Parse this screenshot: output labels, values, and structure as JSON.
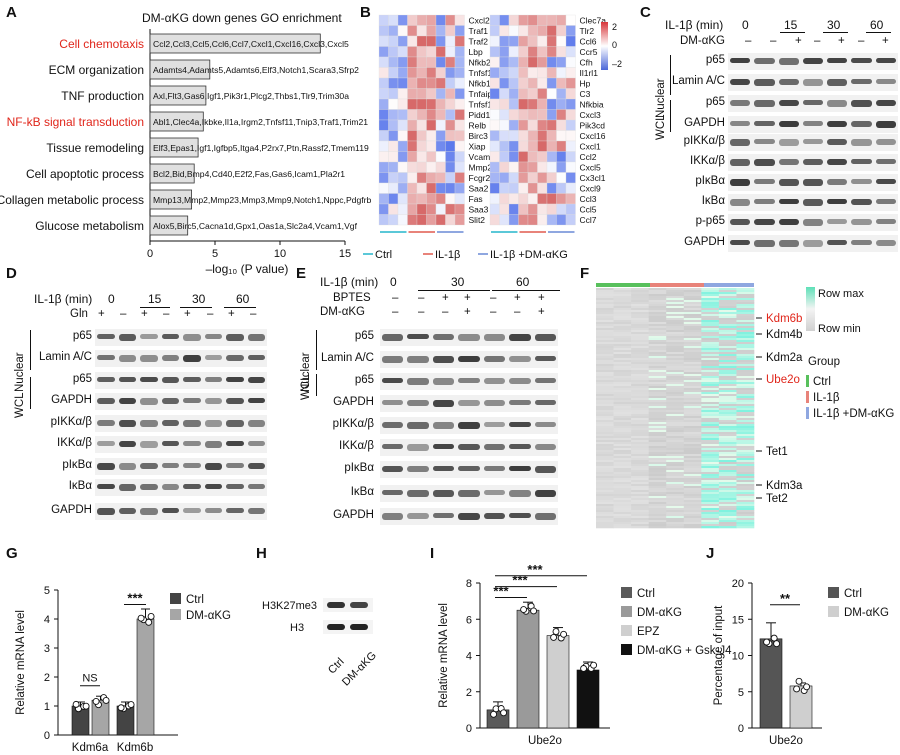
{
  "panels": {
    "A": "A",
    "B": "B",
    "C": "C",
    "D": "D",
    "E": "E",
    "F": "F",
    "G": "G",
    "H": "H",
    "I": "I",
    "J": "J"
  },
  "panelA": {
    "title": "DM-αKG down genes GO enrichment",
    "xlabel": "–log₁₀ (P value)",
    "ticks": [
      "0",
      "5",
      "10",
      "15"
    ],
    "terms": [
      {
        "term": "Cell chemotaxis",
        "genes": "Ccl2,Ccl3,Ccl5,Ccl6,Ccl7,Cxcl1,Cxcl16,Cxcl3,Cxcl5",
        "value": 13.1,
        "highlight": true
      },
      {
        "term": "ECM organization",
        "genes": "Adamts4,Adamts5,Adamts6,Elf3,Notch1,Scara3,Sfrp2",
        "value": 4.6,
        "highlight": false
      },
      {
        "term": "TNF production",
        "genes": "Axl,Flt3,Gas6,Igf1,Pik3r1,Plcg2,Thbs1,Tlr9,Trim30a",
        "value": 4.3,
        "highlight": false
      },
      {
        "term": "NF-kB signal transduction",
        "genes": "Abl1,Clec4a,Ikbke,Il1a,Irgm2,Tnfsf11,Tnip3,Traf1,Trim21",
        "value": 4.1,
        "highlight": true
      },
      {
        "term": "Tissue remodeling",
        "genes": "Elf3,Epas1,Igf1,Igfbp5,Itga4,P2rx7,Ptn,Rassf2,Tmem119",
        "value": 3.7,
        "highlight": false
      },
      {
        "term": "Cell apoptotic process",
        "genes": "Bcl2,Bid,Bmp4,Cd40,E2f2,Fas,Gas6,Icam1,Pla2r1",
        "value": 3.4,
        "highlight": false
      },
      {
        "term": "Collagen metabolic process",
        "genes": "Mmp13,Mmp2,Mmp23,Mmp3,Mmp9,Notch1,Nppc,Pdgfrb",
        "value": 3.2,
        "highlight": false
      },
      {
        "term": "Glucose metabolism",
        "genes": "Alox5,Birc5,Cacna1d,Gpx1,Oas1a,Slc2a4,Vcam1,Vgf",
        "value": 2.9,
        "highlight": false
      }
    ],
    "highlight_color": "#e0261b",
    "bar_color": "#e0e0e0"
  },
  "panelB": {
    "genes_left": [
      "Cxcl2",
      "Traf1",
      "Traf2",
      "Lbp",
      "Nfkb2",
      "Tnfsf14",
      "Nfkb1",
      "Tnfaip3",
      "Tnfsf11",
      "Pidd1",
      "Relb",
      "Birc3",
      "Xiap",
      "Vcam1",
      "Mmp2",
      "Fcgr2b",
      "Saa2",
      "Fas",
      "Saa3",
      "Slit2"
    ],
    "genes_right": [
      "Clec7a",
      "Tlr2",
      "Ccl6",
      "Ccr5",
      "Cfh",
      "Il1rl1",
      "Hp",
      "C3",
      "Nfkbia",
      "Cxcl3",
      "Pik3cd",
      "Cxcl16",
      "Cxcl1",
      "Ccl2",
      "Cxcl5",
      "Cx3cl1",
      "Cxcl9",
      "Ccl3",
      "Ccl5",
      "Ccl7"
    ],
    "scale_labels": [
      "2",
      "0",
      "–2"
    ],
    "legend": [
      {
        "label": "Ctrl",
        "color": "#5bc8d8"
      },
      {
        "label": "IL-1β",
        "color": "#e8837a"
      },
      {
        "label": "IL-1β +DM-αKG",
        "color": "#8fa7e0"
      }
    ]
  },
  "panelC": {
    "header_il": "IL-1β (min)",
    "header_dm": "DM-αKG",
    "timepoints": [
      "0",
      "15",
      "30",
      "60"
    ],
    "dm_signs": [
      "–",
      "–",
      "+",
      "–",
      "+",
      "–",
      "+"
    ],
    "group_nuclear": "Nuclear",
    "group_wcl": "WCL",
    "bands": [
      "p65",
      "Lamin A/C",
      "p65",
      "GAPDH",
      "pIKKα/β",
      "IKKα/β",
      "pIκBα",
      "IκBα",
      "p-p65",
      "GAPDH"
    ]
  },
  "panelD": {
    "header_il": "IL-1β (min)",
    "header_gln": "Gln",
    "timepoints": [
      "0",
      "15",
      "30",
      "60"
    ],
    "gln_signs": [
      "+",
      "–",
      "+",
      "–",
      "+",
      "–",
      "+",
      "–"
    ],
    "group_nuclear": "Nuclear",
    "group_wcl": "WCL",
    "bands": [
      "p65",
      "Lamin A/C",
      "p65",
      "GAPDH",
      "pIKKα/β",
      "IKKα/β",
      "pIκBα",
      "IκBα",
      "GAPDH"
    ]
  },
  "panelE": {
    "header_il": "IL-1β (min)",
    "header_bptes": "BPTES",
    "header_dm": "DM-αKG",
    "timepoints": [
      "0",
      "30",
      "60"
    ],
    "bptes_signs": [
      "–",
      "–",
      "+",
      "+",
      "–",
      "+",
      "+"
    ],
    "dm_signs": [
      "–",
      "–",
      "–",
      "+",
      "–",
      "–",
      "+"
    ],
    "group_nuclear": "Nuclear",
    "group_wcl": "WCL",
    "bands": [
      "p65",
      "Lamin A/C",
      "p65",
      "GAPDH",
      "pIKKα/β",
      "IKKα/β",
      "pIκBα",
      "IκBα",
      "GAPDH"
    ]
  },
  "panelF": {
    "row_max": "Row max",
    "row_min": "Row min",
    "group_title": "Group",
    "groups": [
      {
        "label": "Ctrl",
        "color": "#58c05c"
      },
      {
        "label": "IL-1β",
        "color": "#e8837a"
      },
      {
        "label": "IL-1β +DM-αKG",
        "color": "#8fa7e0"
      }
    ],
    "genes": [
      {
        "name": "Kdm6b",
        "red": true
      },
      {
        "name": "Kdm4b",
        "red": false
      },
      {
        "name": "Kdm2a",
        "red": false
      },
      {
        "name": "Ube2o",
        "red": true
      },
      {
        "name": "Tet1",
        "red": false
      },
      {
        "name": "Kdm3a",
        "red": false
      },
      {
        "name": "Tet2",
        "red": false
      }
    ]
  },
  "panelH": {
    "bands": [
      "H3K27me3",
      "H3"
    ],
    "lanes": [
      "Ctrl",
      "DM-αKG"
    ]
  },
  "chart_data": [
    {
      "type": "bar",
      "panel": "G",
      "ylabel": "Relative mRNA level",
      "categories": [
        "Kdm6a",
        "Kdm6b"
      ],
      "ylim": [
        0,
        5
      ],
      "yticks": [
        "0",
        "1",
        "2",
        "3",
        "4",
        "5"
      ],
      "series": [
        {
          "name": "Ctrl",
          "values": [
            1.0,
            1.0
          ]
        },
        {
          "name": "DM-αKG",
          "values": [
            1.2,
            4.0
          ]
        }
      ],
      "annotations": [
        "NS",
        "***"
      ],
      "colors": [
        "#444444",
        "#a6a6a6"
      ]
    },
    {
      "type": "bar",
      "panel": "I",
      "ylabel": "Relative mRNA level",
      "categories": [
        "Ube2o"
      ],
      "ylim": [
        0,
        8
      ],
      "yticks": [
        "0",
        "2",
        "4",
        "6",
        "8"
      ],
      "series": [
        {
          "name": "Ctrl",
          "values": [
            1.0
          ]
        },
        {
          "name": "DM-αKG",
          "values": [
            6.5
          ]
        },
        {
          "name": "EPZ",
          "values": [
            5.1
          ]
        },
        {
          "name": "DM-αKG + Gsk-J4",
          "values": [
            3.2
          ]
        }
      ],
      "annotations": [
        "***",
        "***",
        "***"
      ],
      "colors": [
        "#5a5a5a",
        "#9a9a9a",
        "#cfcfcf",
        "#111111"
      ]
    },
    {
      "type": "bar",
      "panel": "J",
      "ylabel": "Percentage of input",
      "categories": [
        "Ube2o"
      ],
      "ylim": [
        0,
        20
      ],
      "yticks": [
        "0",
        "5",
        "10",
        "15",
        "20"
      ],
      "series": [
        {
          "name": "Ctrl",
          "values": [
            12.3
          ]
        },
        {
          "name": "DM-αKG",
          "values": [
            5.8
          ]
        }
      ],
      "annotations": [
        "**"
      ],
      "colors": [
        "#555555",
        "#cfcfcf"
      ]
    }
  ]
}
